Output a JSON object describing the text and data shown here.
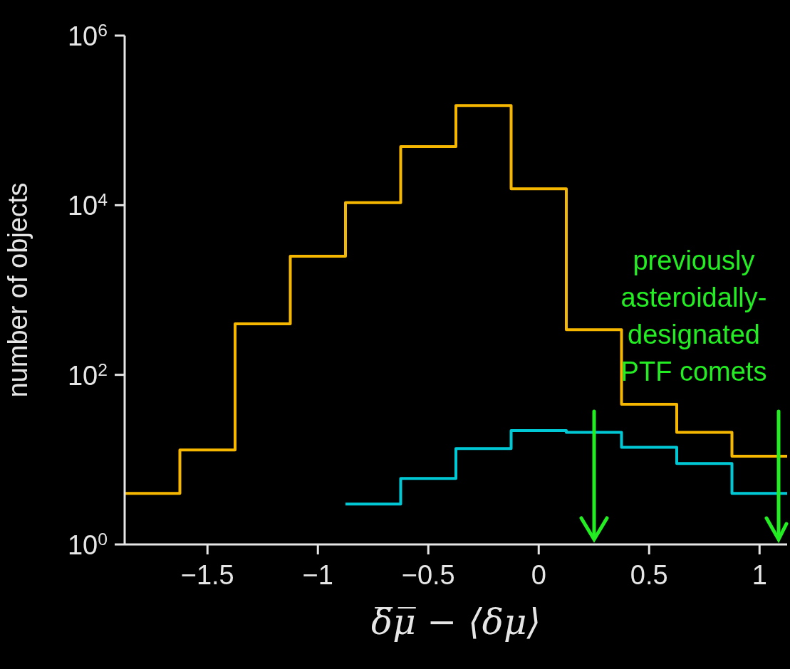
{
  "chart_data": {
    "type": "histogram",
    "xlabel": "δ̅μ̅ − ⟨δμ⟩",
    "ylabel": "number of objects",
    "bins": [
      -1.875,
      -1.625,
      -1.375,
      -1.125,
      -0.875,
      -0.625,
      -0.375,
      -0.125,
      0.125,
      0.375,
      0.625,
      0.875,
      1.125
    ],
    "series": [
      {
        "color": "#f5b700",
        "values": [
          4,
          13,
          400,
          2500,
          10700,
          49000,
          150000,
          15600,
          340,
          45,
          21,
          11
        ]
      },
      {
        "color": "#00c8d4",
        "bins": [
          -0.875,
          -0.625,
          -0.375,
          -0.125,
          0.125,
          0.375,
          0.625,
          0.875,
          1.125
        ],
        "values": [
          3,
          6,
          13.5,
          22,
          21,
          14,
          9,
          4
        ]
      }
    ],
    "log": "y",
    "xlim": [
      -1.875,
      1.125
    ],
    "xticks": [
      -1.5,
      -1,
      -0.5,
      0,
      0.5,
      1
    ],
    "ylim": [
      1,
      1000000
    ],
    "yticks": [
      {
        "value": 1,
        "label": "10$^{0}$"
      },
      {
        "value": 100,
        "label": "10$^{2}$"
      },
      {
        "value": 10000,
        "label": "10$^{4}$"
      },
      {
        "value": 1000000,
        "label": "10$^{6}$"
      }
    ],
    "annotations": [
      "previously asteroidally-designated PTF comets"
    ]
  }
}
